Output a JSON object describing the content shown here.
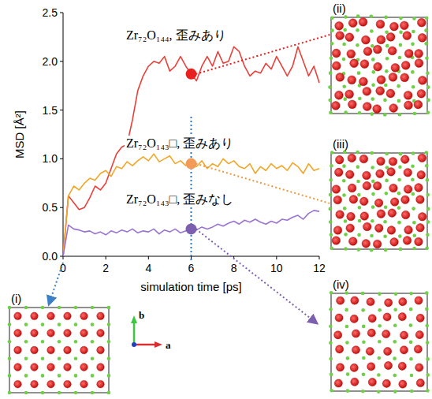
{
  "chart_data": {
    "type": "line",
    "xlabel": "simulation time [ps]",
    "ylabel": "MSD [Å²]",
    "x": [
      0,
      0.25,
      0.5,
      0.75,
      1,
      1.25,
      1.5,
      1.75,
      2,
      2.25,
      2.5,
      2.75,
      3,
      3.25,
      3.5,
      3.75,
      4,
      4.25,
      4.5,
      4.75,
      5,
      5.25,
      5.5,
      5.75,
      6,
      6.25,
      6.5,
      6.75,
      7,
      7.25,
      7.5,
      7.75,
      8,
      8.25,
      8.5,
      8.75,
      9,
      9.25,
      9.5,
      9.75,
      10,
      10.25,
      10.5,
      10.75,
      11,
      11.25,
      11.5,
      11.75,
      12
    ],
    "xlim": [
      0,
      12
    ],
    "xticks": [
      0,
      2,
      4,
      6,
      8,
      10,
      12
    ],
    "ylim": [
      0,
      2.5
    ],
    "yticks": [
      {
        "value": 0,
        "label": "0.0"
      },
      {
        "value": 0.5,
        "label": "0.5"
      },
      {
        "value": 1,
        "label": "1.0"
      },
      {
        "value": 1.5,
        "label": "1.5"
      },
      {
        "value": 2,
        "label": "2.0"
      },
      {
        "value": 2.5,
        "label": "2.5"
      }
    ],
    "marked_x": 6,
    "series": [
      {
        "name": "Zr₇₂O₁₄₄, 歪みあり",
        "color": "#e8403a",
        "marked_value": 1.87,
        "values": [
          0,
          0.62,
          0.55,
          0.48,
          0.5,
          0.6,
          0.72,
          0.68,
          0.75,
          0.9,
          1.05,
          1.12,
          1.15,
          1.4,
          1.7,
          1.85,
          1.95,
          2.0,
          1.98,
          2.05,
          1.9,
          1.95,
          2.05,
          1.95,
          1.87,
          1.8,
          1.95,
          2.05,
          1.95,
          2.1,
          1.98,
          2.0,
          2.15,
          2.1,
          1.95,
          1.85,
          1.9,
          1.88,
          1.98,
          1.92,
          2.05,
          1.95,
          1.85,
          1.95,
          2.15,
          2.0,
          1.85,
          1.95,
          1.78
        ]
      },
      {
        "name": "Zr₇₂O₁₄₃□, 歪みあり",
        "color": "#f2a628",
        "marked_value": 0.95,
        "values": [
          0,
          0.62,
          0.72,
          0.68,
          0.75,
          0.8,
          0.78,
          0.85,
          0.88,
          0.82,
          0.92,
          0.9,
          0.97,
          0.93,
          0.98,
          1.02,
          0.98,
          1.05,
          0.97,
          1.0,
          1.03,
          0.95,
          0.98,
          0.93,
          0.95,
          0.92,
          0.98,
          0.9,
          0.95,
          0.92,
          1.0,
          0.95,
          0.98,
          0.92,
          0.9,
          0.95,
          0.85,
          0.92,
          0.88,
          0.95,
          0.9,
          0.93,
          0.88,
          0.96,
          0.92,
          0.85,
          0.95,
          0.88,
          0.9
        ]
      },
      {
        "name": "Zr₇₂O₁₄₃□, 歪みなし",
        "color": "#9a74d2",
        "marked_value": 0.28,
        "values": [
          0,
          0.32,
          0.28,
          0.27,
          0.25,
          0.26,
          0.23,
          0.25,
          0.22,
          0.26,
          0.24,
          0.27,
          0.25,
          0.28,
          0.24,
          0.26,
          0.25,
          0.28,
          0.23,
          0.27,
          0.25,
          0.28,
          0.24,
          0.26,
          0.28,
          0.27,
          0.3,
          0.28,
          0.3,
          0.33,
          0.31,
          0.34,
          0.36,
          0.33,
          0.37,
          0.35,
          0.38,
          0.35,
          0.33,
          0.36,
          0.34,
          0.38,
          0.37,
          0.4,
          0.42,
          0.38,
          0.44,
          0.47,
          0.46
        ]
      }
    ]
  },
  "insets": [
    "(i)",
    "(ii)",
    "(iii)",
    "(iv)"
  ],
  "axes_icon": [
    "a",
    "b"
  ]
}
